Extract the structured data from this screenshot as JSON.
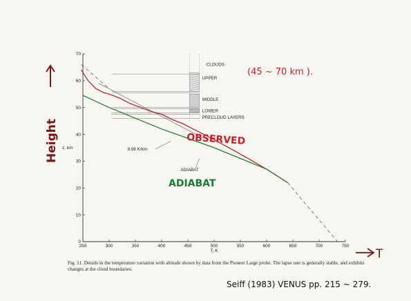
{
  "chart_data": {
    "type": "line",
    "xlabel": "T, K",
    "ylabel": "z, km",
    "xlim": [
      250,
      750
    ],
    "ylim": [
      0,
      70
    ],
    "x_ticks": [
      250,
      300,
      350,
      400,
      450,
      500,
      550,
      600,
      650,
      700,
      750
    ],
    "y_ticks": [
      0,
      10,
      20,
      30,
      40,
      50,
      60,
      70
    ],
    "grid": false,
    "series": [
      {
        "name": "OBSERVED",
        "color": "#c0202a",
        "points": [
          [
            247,
            64
          ],
          [
            260,
            60
          ],
          [
            275,
            57
          ],
          [
            290,
            55.5
          ],
          [
            300,
            55
          ],
          [
            320,
            53.5
          ],
          [
            340,
            51.5
          ],
          [
            360,
            50
          ],
          [
            380,
            48.5
          ],
          [
            400,
            47.5
          ],
          [
            420,
            45.5
          ],
          [
            440,
            44
          ],
          [
            460,
            42
          ],
          [
            480,
            40
          ],
          [
            500,
            38
          ],
          [
            530,
            34.8
          ],
          [
            560,
            31.5
          ],
          [
            600,
            27
          ],
          [
            640,
            22
          ]
        ]
      },
      {
        "name": "ADIABAT",
        "color": "#2a7a3a",
        "points": [
          [
            250,
            54.5
          ],
          [
            300,
            50
          ],
          [
            350,
            46
          ],
          [
            400,
            42
          ],
          [
            450,
            38.5
          ],
          [
            500,
            35
          ],
          [
            550,
            31
          ],
          [
            600,
            27
          ],
          [
            640,
            22
          ]
        ]
      },
      {
        "name": "8.98 K/km",
        "dash": "solid-thin",
        "points": [
          [
            280,
            59
          ],
          [
            480,
            38.5
          ]
        ]
      },
      {
        "name": "extrapolation",
        "dash": "dashed",
        "points": [
          [
            640,
            22
          ],
          [
            735,
            0
          ]
        ]
      },
      {
        "name": "upper-left dashed",
        "dash": "dashed",
        "points": [
          [
            247,
            66
          ],
          [
            300,
            57
          ]
        ]
      }
    ],
    "cloud_layers": [
      {
        "label": "UPPER",
        "z_top": 63,
        "z_bottom": 56
      },
      {
        "label": "MIDDLE",
        "z_top": 56,
        "z_bottom": 50
      },
      {
        "label": "LOWER",
        "z_top": 50,
        "z_bottom": 48
      },
      {
        "label": "PRECLOUD LAYERS",
        "z_top": 48,
        "z_bottom": 45
      }
    ],
    "cloud_lines_z": [
      62.5,
      56,
      55.5,
      50,
      49.5,
      48,
      47.5,
      46
    ]
  },
  "labels": {
    "clouds": "CLOUDS",
    "upper": "UPPER",
    "middle": "MIDDLE",
    "lower": "LOWER",
    "precloud": "PRECLOUD LAYERS",
    "lapse": "8.98 K/km",
    "adiabat_print": "ADIABAT"
  },
  "annotations": {
    "height": "Height",
    "t": "T",
    "clouds_range": "(45 ~ 70 km ).",
    "observed": "OBSERVED",
    "adiabat": "ADIABAT",
    "citation": "Seiff (1983) VENUS pp. 215 ~ 279."
  },
  "caption": "Fig. 11. Details in the temperature variation with altitude shown by data from the Pioneer Large probe. The lapse rate is generally stable, and exhibits changes at the cloud boundaries.",
  "colors": {
    "observed": "#c0202a",
    "adiabat": "#2a7a3a",
    "ink_red": "#c81e28",
    "ink_dark": "#7a1418",
    "ink_green": "#1c7a36",
    "axis": "#333333"
  }
}
